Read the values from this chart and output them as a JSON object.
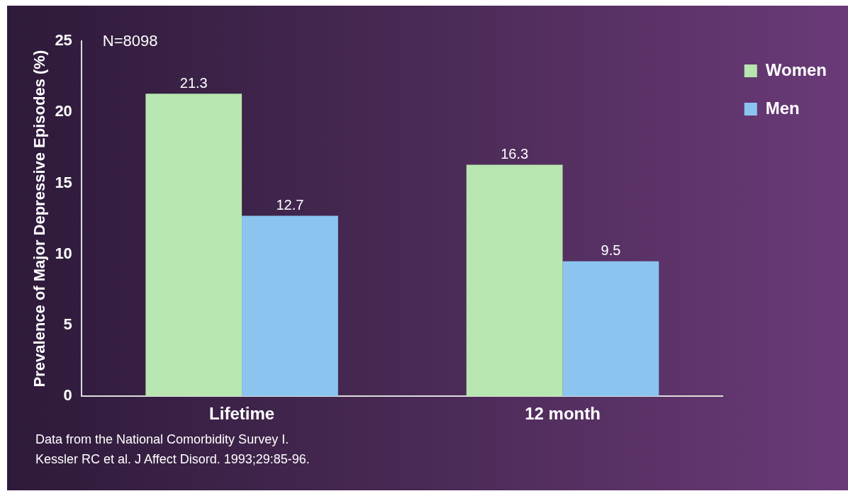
{
  "chart_data": {
    "type": "bar",
    "categories": [
      "Lifetime",
      "12 month"
    ],
    "series": [
      {
        "name": "Women",
        "color": "#b8e6b0",
        "values": [
          21.3,
          16.3
        ]
      },
      {
        "name": "Men",
        "color": "#8cc4f0",
        "values": [
          12.7,
          9.5
        ]
      }
    ],
    "ylabel": "Prevalence of Major Depressive Episodes (%)",
    "ylim": [
      0,
      25
    ],
    "yticks": [
      0,
      5,
      10,
      15,
      20,
      25
    ],
    "grid": false,
    "legend": "top right",
    "data_labels": true,
    "annotations": [
      "N=8098",
      "Data from the National Comorbidity Survey I.",
      "Kessler RC et al. J Affect Disord. 1993;29:85-96."
    ]
  }
}
